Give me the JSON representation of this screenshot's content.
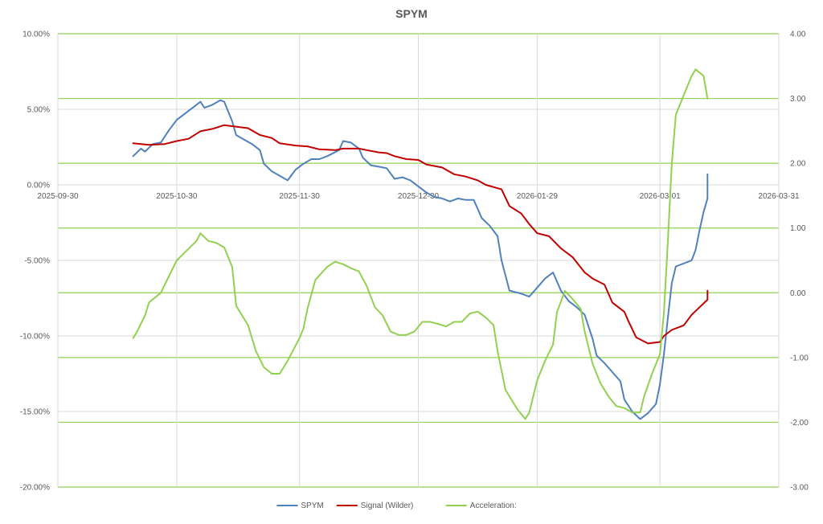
{
  "chart_data": {
    "type": "line",
    "title": "SPYM",
    "x_axis": {
      "type": "date",
      "range": [
        "2025-09-30",
        "2026-03-31"
      ],
      "ticks": [
        "2025-09-30",
        "2025-10-30",
        "2025-11-30",
        "2025-12-30",
        "2026-01-29",
        "2026-03-01",
        "2026-03-31"
      ]
    },
    "y_left": {
      "range": [
        -20,
        10
      ],
      "ticks": [
        10,
        5,
        0,
        -5,
        -10,
        -15,
        -20
      ],
      "tick_labels": [
        "10.00%",
        "5.00%",
        "0.00%",
        "-5.00%",
        "-10.00%",
        "-15.00%",
        "-20.00%"
      ]
    },
    "y_right": {
      "range": [
        -3,
        4
      ],
      "ticks": [
        4,
        3,
        2,
        1,
        0,
        -1,
        -2,
        -3
      ],
      "tick_labels": [
        "4.00",
        "3.00",
        "2.00",
        "1.00",
        "0.00",
        "-1.00",
        "-2.00",
        "-3.00"
      ]
    },
    "grid": true,
    "legend_position": "bottom",
    "series": [
      {
        "name": "SPYM",
        "axis": "left",
        "color": "#4F81BD",
        "points": [
          [
            "2025-10-19",
            1.9
          ],
          [
            "2025-10-21",
            2.4
          ],
          [
            "2025-10-22",
            2.2
          ],
          [
            "2025-10-24",
            2.7
          ],
          [
            "2025-10-26",
            2.8
          ],
          [
            "2025-10-28",
            3.6
          ],
          [
            "2025-10-30",
            4.3
          ],
          [
            "2025-11-02",
            4.9
          ],
          [
            "2025-11-04",
            5.3
          ],
          [
            "2025-11-05",
            5.5
          ],
          [
            "2025-11-06",
            5.1
          ],
          [
            "2025-11-08",
            5.3
          ],
          [
            "2025-11-10",
            5.6
          ],
          [
            "2025-11-11",
            5.5
          ],
          [
            "2025-11-13",
            4.2
          ],
          [
            "2025-11-14",
            3.3
          ],
          [
            "2025-11-16",
            3.0
          ],
          [
            "2025-11-18",
            2.7
          ],
          [
            "2025-11-20",
            2.3
          ],
          [
            "2025-11-21",
            1.4
          ],
          [
            "2025-11-23",
            0.9
          ],
          [
            "2025-11-25",
            0.6
          ],
          [
            "2025-11-27",
            0.3
          ],
          [
            "2025-11-29",
            1.0
          ],
          [
            "2025-12-01",
            1.4
          ],
          [
            "2025-12-03",
            1.7
          ],
          [
            "2025-12-05",
            1.7
          ],
          [
            "2025-12-07",
            1.9
          ],
          [
            "2025-12-10",
            2.3
          ],
          [
            "2025-12-11",
            2.9
          ],
          [
            "2025-12-13",
            2.8
          ],
          [
            "2025-12-15",
            2.4
          ],
          [
            "2025-12-16",
            1.8
          ],
          [
            "2025-12-18",
            1.3
          ],
          [
            "2025-12-20",
            1.2
          ],
          [
            "2025-12-22",
            1.1
          ],
          [
            "2025-12-24",
            0.4
          ],
          [
            "2025-12-26",
            0.5
          ],
          [
            "2025-12-28",
            0.3
          ],
          [
            "2025-12-30",
            -0.1
          ],
          [
            "2026-01-01",
            -0.5
          ],
          [
            "2026-01-03",
            -0.8
          ],
          [
            "2026-01-05",
            -0.9
          ],
          [
            "2026-01-07",
            -1.1
          ],
          [
            "2026-01-09",
            -0.9
          ],
          [
            "2026-01-11",
            -1.0
          ],
          [
            "2026-01-13",
            -1.0
          ],
          [
            "2026-01-15",
            -2.2
          ],
          [
            "2026-01-17",
            -2.7
          ],
          [
            "2026-01-19",
            -3.4
          ],
          [
            "2026-01-20",
            -5.0
          ],
          [
            "2026-01-22",
            -7.0
          ],
          [
            "2026-01-25",
            -7.2
          ],
          [
            "2026-01-27",
            -7.4
          ],
          [
            "2026-01-29",
            -6.8
          ],
          [
            "2026-01-31",
            -6.2
          ],
          [
            "2026-02-02",
            -5.8
          ],
          [
            "2026-02-04",
            -7.0
          ],
          [
            "2026-02-06",
            -7.7
          ],
          [
            "2026-02-08",
            -8.1
          ],
          [
            "2026-02-10",
            -8.6
          ],
          [
            "2026-02-12",
            -10.2
          ],
          [
            "2026-02-13",
            -11.3
          ],
          [
            "2026-02-15",
            -11.8
          ],
          [
            "2026-02-17",
            -12.4
          ],
          [
            "2026-02-19",
            -13.0
          ],
          [
            "2026-02-20",
            -14.2
          ],
          [
            "2026-02-22",
            -15.0
          ],
          [
            "2026-02-24",
            -15.5
          ],
          [
            "2026-02-26",
            -15.1
          ],
          [
            "2026-02-28",
            -14.5
          ],
          [
            "2026-03-01",
            -13.2
          ],
          [
            "2026-03-02",
            -11.2
          ],
          [
            "2026-03-03",
            -8.8
          ],
          [
            "2026-03-04",
            -6.5
          ],
          [
            "2026-03-05",
            -5.4
          ],
          [
            "2026-03-07",
            -5.2
          ],
          [
            "2026-03-09",
            -5.0
          ],
          [
            "2026-03-10",
            -4.3
          ],
          [
            "2026-03-11",
            -3.0
          ],
          [
            "2026-03-12",
            -1.8
          ],
          [
            "2026-03-13",
            -0.9
          ],
          [
            "2026-03-13",
            0.7
          ]
        ]
      },
      {
        "name": "Signal (Wilder)",
        "axis": "left",
        "color": "#C00000",
        "points": [
          [
            "2025-10-19",
            2.75
          ],
          [
            "2025-10-23",
            2.65
          ],
          [
            "2025-10-27",
            2.7
          ],
          [
            "2025-10-30",
            2.9
          ],
          [
            "2025-11-02",
            3.05
          ],
          [
            "2025-11-05",
            3.55
          ],
          [
            "2025-11-08",
            3.7
          ],
          [
            "2025-11-11",
            3.95
          ],
          [
            "2025-11-14",
            3.85
          ],
          [
            "2025-11-17",
            3.75
          ],
          [
            "2025-11-20",
            3.3
          ],
          [
            "2025-11-23",
            3.1
          ],
          [
            "2025-11-25",
            2.75
          ],
          [
            "2025-11-29",
            2.6
          ],
          [
            "2025-12-02",
            2.55
          ],
          [
            "2025-12-05",
            2.35
          ],
          [
            "2025-12-09",
            2.3
          ],
          [
            "2025-12-11",
            2.4
          ],
          [
            "2025-12-15",
            2.4
          ],
          [
            "2025-12-17",
            2.3
          ],
          [
            "2025-12-20",
            2.15
          ],
          [
            "2025-12-22",
            2.1
          ],
          [
            "2025-12-24",
            1.9
          ],
          [
            "2025-12-27",
            1.7
          ],
          [
            "2025-12-30",
            1.65
          ],
          [
            "2026-01-01",
            1.35
          ],
          [
            "2026-01-05",
            1.15
          ],
          [
            "2026-01-08",
            0.7
          ],
          [
            "2026-01-11",
            0.55
          ],
          [
            "2026-01-14",
            0.3
          ],
          [
            "2026-01-16",
            0.0
          ],
          [
            "2026-01-20",
            -0.3
          ],
          [
            "2026-01-22",
            -1.4
          ],
          [
            "2026-01-25",
            -1.9
          ],
          [
            "2026-01-27",
            -2.6
          ],
          [
            "2026-01-29",
            -3.2
          ],
          [
            "2026-02-01",
            -3.4
          ],
          [
            "2026-02-04",
            -4.2
          ],
          [
            "2026-02-07",
            -4.8
          ],
          [
            "2026-02-10",
            -5.8
          ],
          [
            "2026-02-12",
            -6.2
          ],
          [
            "2026-02-15",
            -6.6
          ],
          [
            "2026-02-17",
            -7.8
          ],
          [
            "2026-02-20",
            -8.4
          ],
          [
            "2026-02-21",
            -9.0
          ],
          [
            "2026-02-23",
            -10.1
          ],
          [
            "2026-02-26",
            -10.5
          ],
          [
            "2026-03-01",
            -10.4
          ],
          [
            "2026-03-02",
            -10.0
          ],
          [
            "2026-03-04",
            -9.6
          ],
          [
            "2026-03-07",
            -9.3
          ],
          [
            "2026-03-09",
            -8.6
          ],
          [
            "2026-03-11",
            -8.1
          ],
          [
            "2026-03-13",
            -7.6
          ],
          [
            "2026-03-13",
            -7.0
          ]
        ]
      },
      {
        "name": "Acceleration:",
        "axis": "right",
        "color": "#92D050",
        "points": [
          [
            "2025-10-19",
            -0.7
          ],
          [
            "2025-10-20",
            -0.6
          ],
          [
            "2025-10-22",
            -0.35
          ],
          [
            "2025-10-23",
            -0.15
          ],
          [
            "2025-10-25",
            -0.05
          ],
          [
            "2025-10-26",
            0.0
          ],
          [
            "2025-10-28",
            0.25
          ],
          [
            "2025-10-30",
            0.5
          ],
          [
            "2025-11-01",
            0.62
          ],
          [
            "2025-11-04",
            0.8
          ],
          [
            "2025-11-05",
            0.92
          ],
          [
            "2025-11-07",
            0.8
          ],
          [
            "2025-11-09",
            0.77
          ],
          [
            "2025-11-11",
            0.7
          ],
          [
            "2025-11-13",
            0.4
          ],
          [
            "2025-11-14",
            -0.2
          ],
          [
            "2025-11-17",
            -0.5
          ],
          [
            "2025-11-19",
            -0.9
          ],
          [
            "2025-11-21",
            -1.15
          ],
          [
            "2025-11-23",
            -1.25
          ],
          [
            "2025-11-25",
            -1.25
          ],
          [
            "2025-11-27",
            -1.05
          ],
          [
            "2025-11-30",
            -0.7
          ],
          [
            "2025-12-01",
            -0.55
          ],
          [
            "2025-12-02",
            -0.25
          ],
          [
            "2025-12-04",
            0.2
          ],
          [
            "2025-12-07",
            0.4
          ],
          [
            "2025-12-09",
            0.48
          ],
          [
            "2025-12-11",
            0.44
          ],
          [
            "2025-12-13",
            0.38
          ],
          [
            "2025-12-15",
            0.33
          ],
          [
            "2025-12-17",
            0.1
          ],
          [
            "2025-12-19",
            -0.22
          ],
          [
            "2025-12-21",
            -0.35
          ],
          [
            "2025-12-23",
            -0.6
          ],
          [
            "2025-12-25",
            -0.65
          ],
          [
            "2025-12-27",
            -0.65
          ],
          [
            "2025-12-29",
            -0.6
          ],
          [
            "2025-12-31",
            -0.45
          ],
          [
            "2026-01-02",
            -0.45
          ],
          [
            "2026-01-04",
            -0.48
          ],
          [
            "2026-01-06",
            -0.52
          ],
          [
            "2026-01-08",
            -0.45
          ],
          [
            "2026-01-10",
            -0.45
          ],
          [
            "2026-01-12",
            -0.32
          ],
          [
            "2026-01-14",
            -0.29
          ],
          [
            "2026-01-16",
            -0.38
          ],
          [
            "2026-01-18",
            -0.5
          ],
          [
            "2026-01-19",
            -0.9
          ],
          [
            "2026-01-21",
            -1.5
          ],
          [
            "2026-01-24",
            -1.8
          ],
          [
            "2026-01-26",
            -1.95
          ],
          [
            "2026-01-27",
            -1.85
          ],
          [
            "2026-01-29",
            -1.35
          ],
          [
            "2026-01-31",
            -1.05
          ],
          [
            "2026-02-02",
            -0.8
          ],
          [
            "2026-02-03",
            -0.3
          ],
          [
            "2026-02-05",
            0.03
          ],
          [
            "2026-02-07",
            -0.1
          ],
          [
            "2026-02-09",
            -0.25
          ],
          [
            "2026-02-10",
            -0.6
          ],
          [
            "2026-02-12",
            -1.1
          ],
          [
            "2026-02-14",
            -1.4
          ],
          [
            "2026-02-16",
            -1.6
          ],
          [
            "2026-02-18",
            -1.75
          ],
          [
            "2026-02-20",
            -1.78
          ],
          [
            "2026-02-22",
            -1.85
          ],
          [
            "2026-02-24",
            -1.85
          ],
          [
            "2026-02-25",
            -1.6
          ],
          [
            "2026-02-27",
            -1.25
          ],
          [
            "2026-03-01",
            -0.95
          ],
          [
            "2026-03-02",
            -0.3
          ],
          [
            "2026-03-03",
            0.8
          ],
          [
            "2026-03-04",
            2.0
          ],
          [
            "2026-03-05",
            2.75
          ],
          [
            "2026-03-07",
            3.05
          ],
          [
            "2026-03-09",
            3.35
          ],
          [
            "2026-03-10",
            3.45
          ],
          [
            "2026-03-12",
            3.35
          ],
          [
            "2026-03-13",
            3.0
          ]
        ]
      }
    ]
  }
}
